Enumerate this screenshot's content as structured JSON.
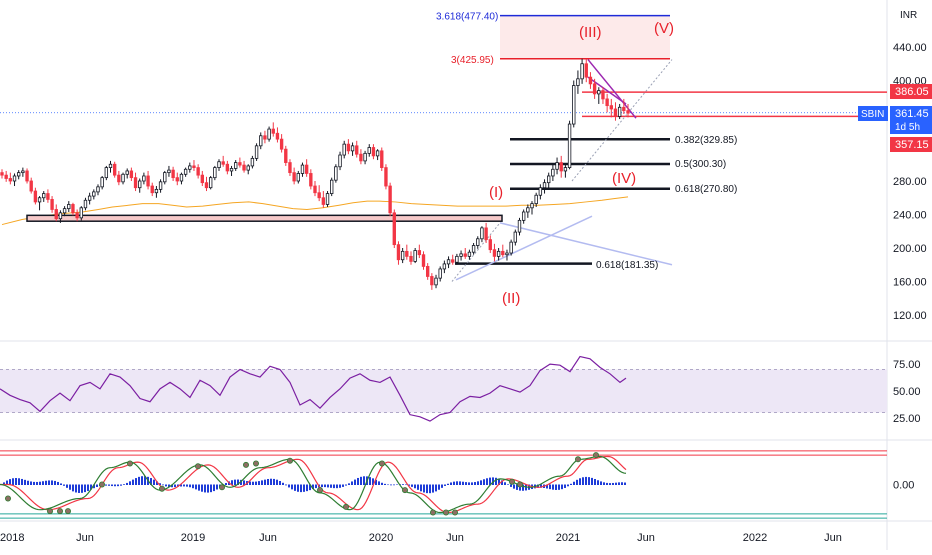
{
  "chart_data": {
    "type": "candlestick",
    "symbol": "SBIN",
    "currency_label": "INR",
    "interval_label": "1d 5h",
    "price_axis": {
      "ticks": [
        120,
        160,
        200,
        240,
        280,
        400,
        440
      ],
      "ylim": [
        90,
        490
      ]
    },
    "time_axis": {
      "labels": [
        "2018",
        "Jun",
        "2019",
        "Jun",
        "2020",
        "Jun",
        "2021",
        "Jun",
        "2022",
        "Jun"
      ]
    },
    "candles": [
      [
        290,
        294,
        283,
        287
      ],
      [
        287,
        292,
        279,
        283
      ],
      [
        283,
        290,
        276,
        280
      ],
      [
        280,
        289,
        274,
        286
      ],
      [
        286,
        293,
        282,
        290
      ],
      [
        290,
        296,
        285,
        292
      ],
      [
        292,
        295,
        277,
        280
      ],
      [
        280,
        284,
        265,
        268
      ],
      [
        268,
        272,
        252,
        255
      ],
      [
        255,
        262,
        245,
        260
      ],
      [
        260,
        268,
        255,
        265
      ],
      [
        265,
        270,
        254,
        258
      ],
      [
        258,
        262,
        242,
        246
      ],
      [
        246,
        252,
        232,
        235
      ],
      [
        235,
        245,
        230,
        242
      ],
      [
        242,
        250,
        238,
        247
      ],
      [
        247,
        256,
        243,
        252
      ],
      [
        252,
        254,
        239,
        242
      ],
      [
        242,
        246,
        232,
        236
      ],
      [
        236,
        250,
        233,
        248
      ],
      [
        248,
        260,
        245,
        257
      ],
      [
        257,
        266,
        252,
        262
      ],
      [
        262,
        270,
        258,
        267
      ],
      [
        267,
        276,
        263,
        273
      ],
      [
        273,
        286,
        270,
        284
      ],
      [
        284,
        298,
        281,
        296
      ],
      [
        296,
        304,
        290,
        300
      ],
      [
        300,
        303,
        284,
        287
      ],
      [
        287,
        292,
        275,
        279
      ],
      [
        279,
        290,
        276,
        288
      ],
      [
        288,
        295,
        283,
        292
      ],
      [
        292,
        296,
        280,
        284
      ],
      [
        284,
        290,
        268,
        272
      ],
      [
        272,
        283,
        266,
        280
      ],
      [
        280,
        290,
        276,
        286
      ],
      [
        286,
        292,
        270,
        274
      ],
      [
        274,
        278,
        262,
        266
      ],
      [
        266,
        274,
        260,
        270
      ],
      [
        270,
        282,
        266,
        279
      ],
      [
        279,
        292,
        276,
        290
      ],
      [
        290,
        298,
        285,
        293
      ],
      [
        293,
        297,
        280,
        284
      ],
      [
        284,
        290,
        275,
        280
      ],
      [
        280,
        290,
        276,
        288
      ],
      [
        288,
        296,
        285,
        294
      ],
      [
        294,
        302,
        290,
        298
      ],
      [
        298,
        305,
        292,
        296
      ],
      [
        296,
        300,
        283,
        287
      ],
      [
        287,
        292,
        274,
        278
      ],
      [
        278,
        285,
        268,
        272
      ],
      [
        272,
        286,
        270,
        284
      ],
      [
        284,
        298,
        281,
        296
      ],
      [
        296,
        306,
        292,
        303
      ],
      [
        303,
        310,
        297,
        300
      ],
      [
        300,
        304,
        288,
        292
      ],
      [
        292,
        298,
        286,
        295
      ],
      [
        295,
        305,
        292,
        302
      ],
      [
        302,
        308,
        296,
        299
      ],
      [
        299,
        304,
        290,
        293
      ],
      [
        293,
        300,
        288,
        298
      ],
      [
        298,
        310,
        295,
        307
      ],
      [
        307,
        325,
        304,
        322
      ],
      [
        322,
        338,
        318,
        334
      ],
      [
        334,
        340,
        325,
        330
      ],
      [
        330,
        345,
        327,
        342
      ],
      [
        342,
        350,
        333,
        337
      ],
      [
        337,
        344,
        326,
        330
      ],
      [
        330,
        336,
        314,
        318
      ],
      [
        318,
        322,
        298,
        302
      ],
      [
        302,
        306,
        286,
        290
      ],
      [
        290,
        296,
        276,
        280
      ],
      [
        280,
        292,
        277,
        289
      ],
      [
        289,
        302,
        285,
        299
      ],
      [
        299,
        306,
        285,
        289
      ],
      [
        289,
        294,
        270,
        274
      ],
      [
        274,
        280,
        262,
        266
      ],
      [
        266,
        275,
        256,
        260
      ],
      [
        260,
        268,
        248,
        252
      ],
      [
        252,
        268,
        249,
        265
      ],
      [
        265,
        284,
        262,
        281
      ],
      [
        281,
        300,
        278,
        297
      ],
      [
        297,
        315,
        293,
        311
      ],
      [
        311,
        328,
        307,
        324
      ],
      [
        324,
        330,
        312,
        316
      ],
      [
        316,
        326,
        310,
        322
      ],
      [
        322,
        328,
        308,
        312
      ],
      [
        312,
        318,
        300,
        304
      ],
      [
        304,
        316,
        300,
        313
      ],
      [
        313,
        324,
        309,
        320
      ],
      [
        320,
        324,
        306,
        310
      ],
      [
        310,
        318,
        305,
        316
      ],
      [
        316,
        320,
        292,
        296
      ],
      [
        296,
        300,
        270,
        274
      ],
      [
        274,
        278,
        238,
        242
      ],
      [
        242,
        246,
        200,
        204
      ],
      [
        204,
        208,
        180,
        186
      ],
      [
        186,
        200,
        182,
        196
      ],
      [
        196,
        204,
        186,
        190
      ],
      [
        190,
        196,
        180,
        184
      ],
      [
        184,
        200,
        182,
        197
      ],
      [
        197,
        204,
        188,
        192
      ],
      [
        192,
        196,
        174,
        178
      ],
      [
        178,
        182,
        162,
        166
      ],
      [
        166,
        170,
        150,
        156
      ],
      [
        156,
        168,
        152,
        164
      ],
      [
        164,
        178,
        160,
        175
      ],
      [
        175,
        185,
        170,
        181
      ],
      [
        181,
        190,
        176,
        186
      ],
      [
        186,
        192,
        180,
        183
      ],
      [
        183,
        193,
        180,
        190
      ],
      [
        190,
        197,
        185,
        193
      ],
      [
        193,
        200,
        187,
        190
      ],
      [
        190,
        198,
        186,
        195
      ],
      [
        195,
        206,
        192,
        203
      ],
      [
        203,
        214,
        199,
        211
      ],
      [
        211,
        226,
        207,
        224
      ],
      [
        224,
        230,
        206,
        210
      ],
      [
        210,
        215,
        194,
        198
      ],
      [
        198,
        205,
        184,
        190
      ],
      [
        190,
        200,
        185,
        196
      ],
      [
        196,
        204,
        189,
        192
      ],
      [
        192,
        198,
        185,
        194
      ],
      [
        194,
        210,
        191,
        207
      ],
      [
        207,
        222,
        203,
        219
      ],
      [
        219,
        236,
        215,
        233
      ],
      [
        233,
        246,
        229,
        243
      ],
      [
        243,
        252,
        236,
        248
      ],
      [
        248,
        256,
        240,
        253
      ],
      [
        253,
        266,
        249,
        263
      ],
      [
        263,
        276,
        258,
        272
      ],
      [
        272,
        282,
        265,
        278
      ],
      [
        278,
        290,
        272,
        286
      ],
      [
        286,
        300,
        280,
        294
      ],
      [
        294,
        308,
        288,
        302
      ],
      [
        302,
        310,
        284,
        292
      ],
      [
        292,
        300,
        284,
        296
      ],
      [
        296,
        352,
        294,
        348
      ],
      [
        348,
        400,
        344,
        394
      ],
      [
        394,
        412,
        384,
        402
      ],
      [
        402,
        426,
        396,
        420
      ],
      [
        420,
        425,
        398,
        404
      ],
      [
        404,
        410,
        390,
        396
      ],
      [
        396,
        402,
        378,
        384
      ],
      [
        384,
        392,
        372,
        388
      ],
      [
        388,
        392,
        372,
        378
      ],
      [
        378,
        384,
        362,
        370
      ],
      [
        370,
        378,
        356,
        366
      ],
      [
        366,
        374,
        352,
        357
      ],
      [
        357,
        372,
        354,
        368
      ],
      [
        368,
        378,
        360,
        364
      ],
      [
        364,
        372,
        356,
        361
      ]
    ],
    "moving_average": [
      [
        0,
        228
      ],
      [
        20,
        234
      ],
      [
        40,
        238
      ],
      [
        60,
        241
      ],
      [
        80,
        243
      ],
      [
        96,
        246
      ],
      [
        110,
        249
      ],
      [
        126,
        251
      ],
      [
        140,
        253
      ],
      [
        156,
        253
      ],
      [
        170,
        251
      ],
      [
        184,
        249
      ],
      [
        200,
        250
      ],
      [
        214,
        252
      ],
      [
        230,
        254
      ],
      [
        246,
        255
      ],
      [
        260,
        253
      ],
      [
        275,
        250
      ],
      [
        290,
        247
      ],
      [
        304,
        246
      ],
      [
        320,
        248
      ],
      [
        336,
        251
      ],
      [
        350,
        254
      ],
      [
        364,
        256
      ],
      [
        376,
        256
      ],
      [
        392,
        255
      ],
      [
        408,
        253
      ],
      [
        424,
        252
      ],
      [
        438,
        251
      ],
      [
        454,
        250
      ],
      [
        470,
        250
      ],
      [
        486,
        250
      ],
      [
        502,
        250
      ],
      [
        518,
        251
      ],
      [
        534,
        251
      ],
      [
        550,
        252
      ],
      [
        566,
        253
      ],
      [
        582,
        255
      ],
      [
        598,
        257
      ],
      [
        610,
        259
      ],
      [
        624,
        261
      ]
    ],
    "fibonacci_levels": [
      {
        "label": "0.382(329.85)",
        "value": 329.85
      },
      {
        "label": "0.5(300.30)",
        "value": 300.3
      },
      {
        "label": "0.618(270.80)",
        "value": 270.8
      },
      {
        "label": "0.618(181.35)",
        "value": 181.35
      }
    ],
    "extension_levels": [
      {
        "label": "3.618(477.40)",
        "value": 477.4,
        "color": "#1e2bd8"
      },
      {
        "label": "3(425.95)",
        "value": 425.95,
        "color": "#e8202a"
      }
    ],
    "price_lines": [
      {
        "label": "386.05",
        "value": 386.05
      },
      {
        "label": "357.15",
        "value": 357.15
      }
    ],
    "last_price_label": "361.45",
    "wave_labels": [
      "(I)",
      "(II)",
      "(III)",
      "(IV)",
      "(V)"
    ],
    "rsi": {
      "ticks": [
        25,
        50,
        75
      ],
      "band": [
        30,
        70
      ],
      "values": [
        [
          0,
          52
        ],
        [
          10,
          46
        ],
        [
          20,
          42
        ],
        [
          30,
          39
        ],
        [
          40,
          31
        ],
        [
          50,
          41
        ],
        [
          60,
          48
        ],
        [
          70,
          41
        ],
        [
          80,
          55
        ],
        [
          90,
          58
        ],
        [
          100,
          52
        ],
        [
          110,
          66
        ],
        [
          120,
          63
        ],
        [
          130,
          55
        ],
        [
          140,
          43
        ],
        [
          150,
          40
        ],
        [
          160,
          52
        ],
        [
          170,
          58
        ],
        [
          180,
          52
        ],
        [
          190,
          44
        ],
        [
          200,
          60
        ],
        [
          210,
          55
        ],
        [
          220,
          46
        ],
        [
          230,
          63
        ],
        [
          240,
          70
        ],
        [
          250,
          66
        ],
        [
          260,
          63
        ],
        [
          270,
          73
        ],
        [
          280,
          70
        ],
        [
          290,
          58
        ],
        [
          300,
          37
        ],
        [
          310,
          42
        ],
        [
          320,
          34
        ],
        [
          330,
          44
        ],
        [
          340,
          52
        ],
        [
          350,
          62
        ],
        [
          360,
          66
        ],
        [
          370,
          60
        ],
        [
          380,
          58
        ],
        [
          390,
          63
        ],
        [
          400,
          46
        ],
        [
          410,
          28
        ],
        [
          420,
          26
        ],
        [
          430,
          22
        ],
        [
          440,
          28
        ],
        [
          450,
          30
        ],
        [
          460,
          40
        ],
        [
          470,
          45
        ],
        [
          480,
          44
        ],
        [
          490,
          48
        ],
        [
          500,
          55
        ],
        [
          510,
          52
        ],
        [
          520,
          49
        ],
        [
          530,
          55
        ],
        [
          540,
          69
        ],
        [
          550,
          75
        ],
        [
          560,
          74
        ],
        [
          570,
          68
        ],
        [
          580,
          82
        ],
        [
          590,
          80
        ],
        [
          600,
          72
        ],
        [
          610,
          66
        ],
        [
          620,
          58
        ],
        [
          626,
          62
        ]
      ]
    },
    "oscillator": {
      "ticks": [
        0
      ],
      "values": [
        [
          0,
          0
        ],
        [
          40,
          -18
        ],
        [
          80,
          -10
        ],
        [
          110,
          12
        ],
        [
          130,
          16
        ],
        [
          160,
          -4
        ],
        [
          200,
          14
        ],
        [
          230,
          -2
        ],
        [
          260,
          12
        ],
        [
          290,
          18
        ],
        [
          320,
          -6
        ],
        [
          350,
          -18
        ],
        [
          380,
          16
        ],
        [
          410,
          -6
        ],
        [
          440,
          -20
        ],
        [
          470,
          -14
        ],
        [
          500,
          4
        ],
        [
          530,
          -2
        ],
        [
          560,
          6
        ],
        [
          580,
          18
        ],
        [
          600,
          20
        ],
        [
          626,
          8
        ]
      ]
    }
  }
}
